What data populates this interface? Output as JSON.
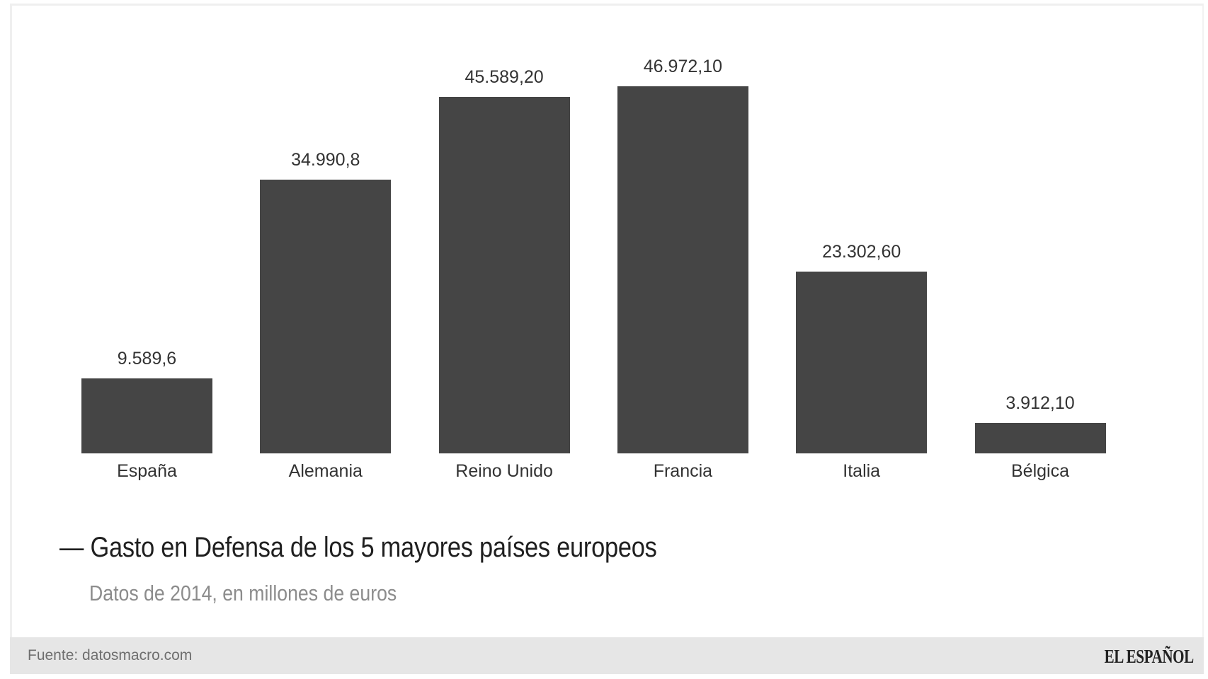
{
  "chart_data": {
    "type": "bar",
    "title": "Gasto en Defensa de los 5 mayores países europeos",
    "subtitle": "Datos de 2014, en millones de euros",
    "xlabel": "",
    "ylabel": "",
    "categories": [
      "España",
      "Alemania",
      "Reino Unido",
      "Francia",
      "Italia",
      "Bélgica"
    ],
    "values": [
      9589.6,
      34990.8,
      45589.2,
      46972.1,
      23302.6,
      3912.1
    ],
    "value_labels": [
      "9.589,6",
      "34.990,8",
      "45.589,20",
      "46.972,10",
      "23.302,60",
      "3.912,10"
    ],
    "bar_color": "#454545",
    "grid": false,
    "legend": null,
    "ylim": [
      0,
      48000
    ]
  },
  "title": {
    "dash": "—",
    "text": "Gasto en Defensa de los 5 mayores países europeos"
  },
  "subtitle": "Datos de 2014, en millones de euros",
  "footer": {
    "source": "Fuente: datosmacro.com",
    "logo": "EL ESPAÑOL"
  }
}
